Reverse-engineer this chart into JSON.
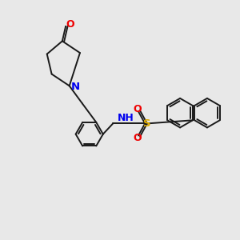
{
  "background_color": "#e8e8e8",
  "bond_color": "#1a1a1a",
  "N_color": "#0000ee",
  "O_color": "#ee0000",
  "S_color": "#ddaa00",
  "lw": 1.4,
  "xlim": [
    0,
    10
  ],
  "ylim": [
    1,
    9
  ],
  "figsize": [
    3.0,
    3.0
  ],
  "dpi": 100
}
